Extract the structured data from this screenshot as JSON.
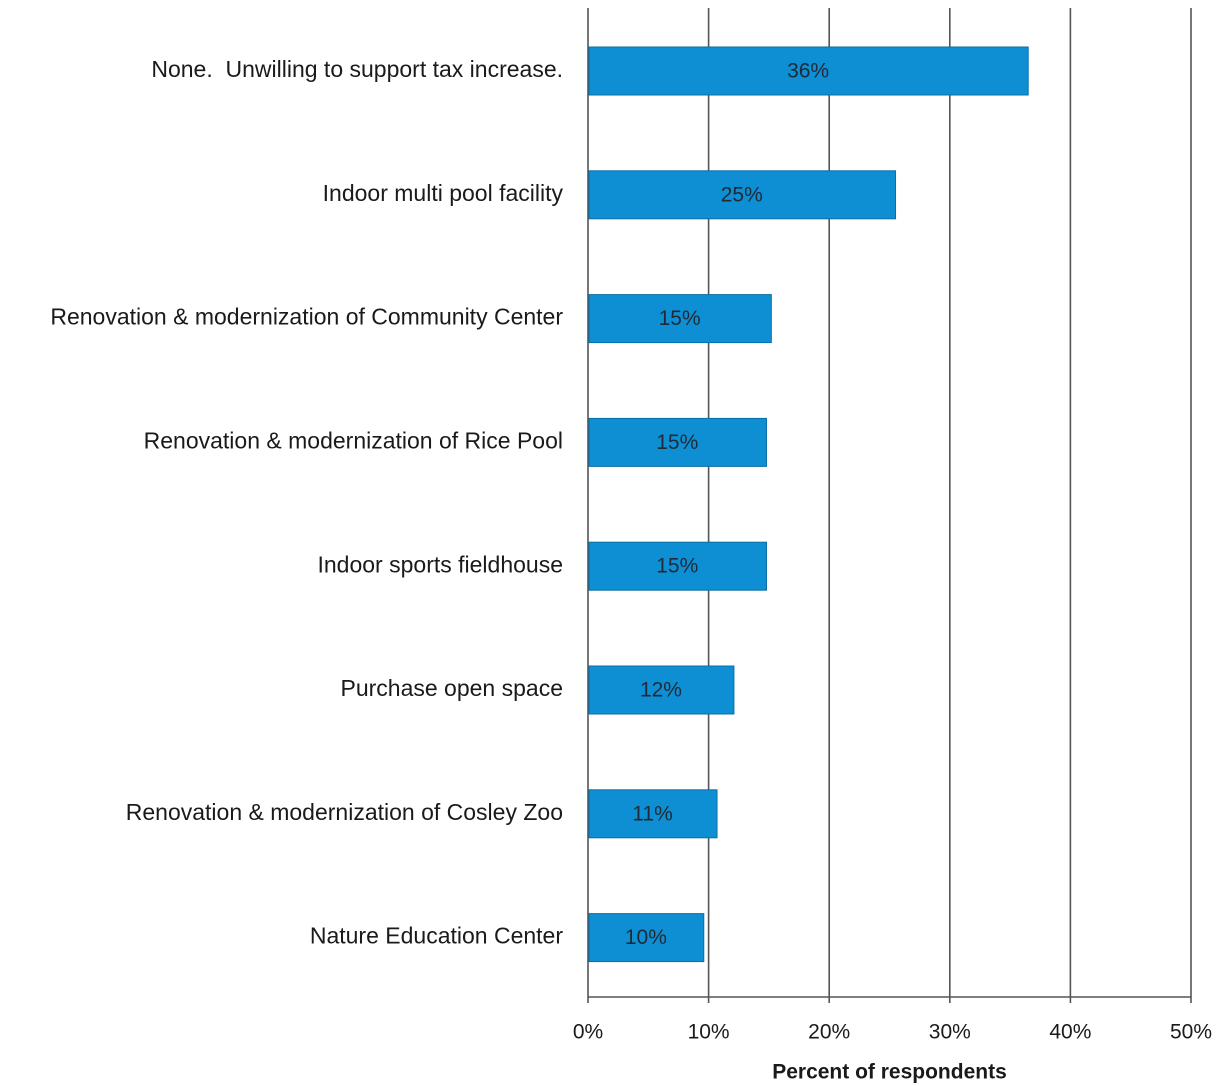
{
  "chart_data": {
    "type": "bar",
    "orientation": "horizontal",
    "categories": [
      "None.  Unwilling to support tax increase.",
      "Indoor multi pool facility",
      "Renovation & modernization of Community Center",
      "Renovation & modernization of Rice Pool",
      "Indoor sports fieldhouse",
      "Purchase open space",
      "Renovation & modernization of Cosley Zoo",
      "Nature Education Center"
    ],
    "values": [
      36.5,
      25.5,
      15.2,
      14.8,
      14.8,
      12.1,
      10.7,
      9.6
    ],
    "data_labels": [
      "36%",
      "25%",
      "15%",
      "15%",
      "15%",
      "12%",
      "11%",
      "10%"
    ],
    "xlabel": "Percent of respondents",
    "xlim": [
      0,
      50
    ],
    "xticks": [
      0,
      10,
      20,
      30,
      40,
      50
    ],
    "xtick_labels": [
      "0%",
      "10%",
      "20%",
      "30%",
      "40%",
      "50%"
    ],
    "grid": "vertical",
    "legend": "none",
    "colors": {
      "bar": "#0e8fd3",
      "bar_edge": "#0a6fa6",
      "grid": "#555555"
    }
  }
}
